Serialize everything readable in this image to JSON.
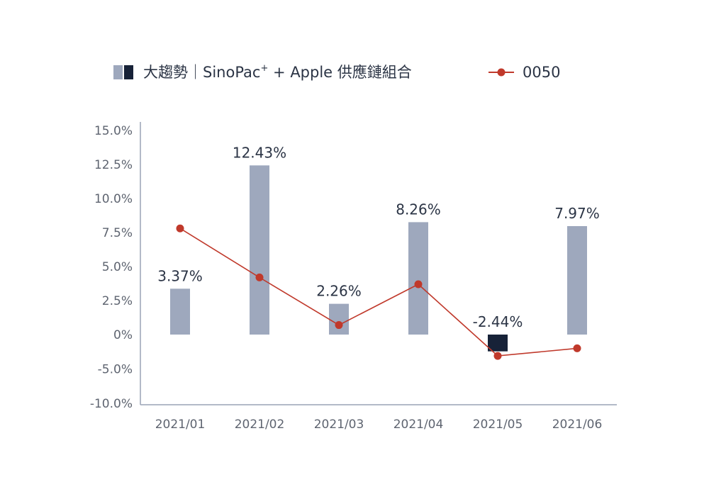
{
  "chart_data": {
    "type": "bar",
    "categories": [
      "2021/01",
      "2021/02",
      "2021/03",
      "2021/04",
      "2021/05",
      "2021/06"
    ],
    "series": [
      {
        "name": "大趨勢｜SinoPac⁺ + Apple 供應鏈組合",
        "type": "bar",
        "values": [
          3.37,
          12.43,
          2.26,
          8.26,
          -2.44,
          7.97
        ],
        "labels": [
          "3.37%",
          "12.43%",
          "2.26%",
          "8.26%",
          "-2.44%",
          "7.97%"
        ],
        "color_positive": "#9ea8bd",
        "color_negative": "#172238"
      },
      {
        "name": "0050",
        "type": "line",
        "values": [
          7.8,
          4.2,
          0.7,
          3.7,
          -3.1,
          -2.0
        ],
        "color": "#c0392b"
      }
    ],
    "y_ticks": [
      "15.0%",
      "12.5%",
      "10.0%",
      "7.5%",
      "5.0%",
      "2.5%",
      "0%",
      "-5.0%",
      "-10.0%"
    ],
    "ylim": [
      -10,
      15
    ],
    "grid": false,
    "legend_position": "top",
    "xlabel": "",
    "ylabel": ""
  },
  "legend": {
    "bar_label_main": "大趨勢｜SinoPac",
    "bar_label_sup": "+",
    "bar_label_tail": " +  Apple 供應鏈組合",
    "line_label": "0050"
  },
  "colors": {
    "axis": "#9aa3b5",
    "text": "#2b3445",
    "tick": "#5e6470"
  }
}
